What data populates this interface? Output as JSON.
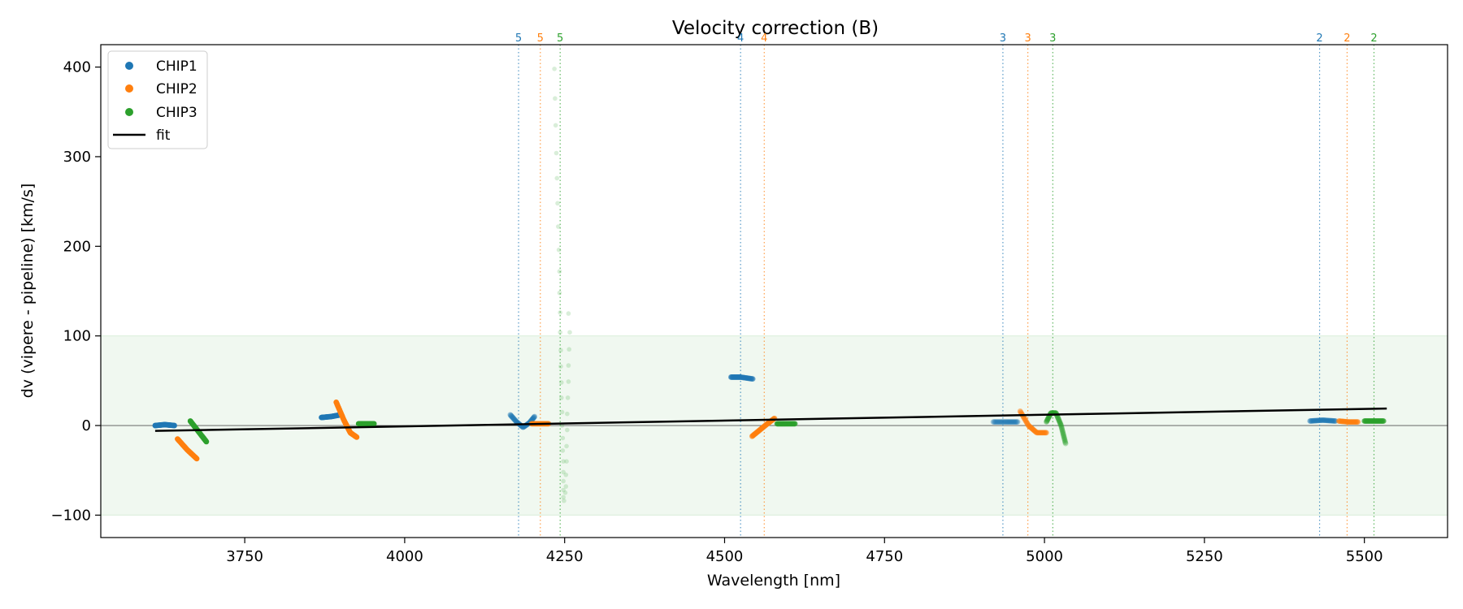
{
  "chart_data": {
    "type": "scatter",
    "title": "Velocity correction (B)",
    "xlabel": "Wavelength [nm]",
    "ylabel": "dv (vipere - pipeline) [km/s]",
    "xlim": [
      3525,
      5630
    ],
    "ylim": [
      -125,
      425
    ],
    "xticks": [
      3750,
      4000,
      4250,
      4500,
      4750,
      5000,
      5250,
      5500
    ],
    "yticks": [
      -100,
      0,
      100,
      200,
      300,
      400
    ],
    "grid": false,
    "legend_position": "top-left",
    "legend": [
      "CHIP1",
      "CHIP2",
      "CHIP3",
      "fit"
    ],
    "colors": {
      "CHIP1": "#1f77b4",
      "CHIP2": "#ff7f0e",
      "CHIP3": "#2ca02c",
      "fit": "#000000",
      "band": "#2ca02c"
    },
    "tolerance_band": [
      -100,
      100
    ],
    "fit": {
      "x": [
        3610,
        5535
      ],
      "y": [
        -6,
        19
      ]
    },
    "order_markers": [
      {
        "label": "5",
        "series": "CHIP1",
        "x": 4178
      },
      {
        "label": "5",
        "series": "CHIP2",
        "x": 4212
      },
      {
        "label": "5",
        "series": "CHIP3",
        "x": 4243
      },
      {
        "label": "4",
        "series": "CHIP1",
        "x": 4525
      },
      {
        "label": "4",
        "series": "CHIP2",
        "x": 4562
      },
      {
        "label": "3",
        "series": "CHIP1",
        "x": 4935
      },
      {
        "label": "3",
        "series": "CHIP2",
        "x": 4974
      },
      {
        "label": "3",
        "series": "CHIP3",
        "x": 5013
      },
      {
        "label": "2",
        "series": "CHIP1",
        "x": 5430
      },
      {
        "label": "2",
        "series": "CHIP2",
        "x": 5473
      },
      {
        "label": "2",
        "series": "CHIP3",
        "x": 5515
      }
    ],
    "series": [
      {
        "name": "CHIP1",
        "segments": [
          {
            "order": 6,
            "alpha": 1.0,
            "points": [
              [
                3610,
                0
              ],
              [
                3625,
                1
              ],
              [
                3640,
                0
              ]
            ]
          },
          {
            "order": 6,
            "alpha": 1.0,
            "points": [
              [
                3870,
                9
              ],
              [
                3885,
                10
              ],
              [
                3900,
                12
              ]
            ]
          },
          {
            "order": 5,
            "alpha": 0.35,
            "points": [
              [
                4165,
                12
              ],
              [
                4175,
                4
              ],
              [
                4185,
                -2
              ],
              [
                4195,
                3
              ],
              [
                4203,
                10
              ]
            ]
          },
          {
            "order": 4,
            "alpha": 0.6,
            "points": [
              [
                4510,
                54
              ],
              [
                4525,
                54
              ],
              [
                4544,
                52
              ]
            ]
          },
          {
            "order": 3,
            "alpha": 0.35,
            "points": [
              [
                4920,
                4
              ],
              [
                4940,
                4
              ],
              [
                4958,
                4
              ]
            ]
          },
          {
            "order": 2,
            "alpha": 0.45,
            "points": [
              [
                5415,
                5
              ],
              [
                5435,
                6
              ],
              [
                5455,
                5
              ]
            ]
          }
        ]
      },
      {
        "name": "CHIP2",
        "segments": [
          {
            "order": 6,
            "alpha": 1.0,
            "points": [
              [
                3645,
                -15
              ],
              [
                3660,
                -27
              ],
              [
                3675,
                -37
              ]
            ]
          },
          {
            "order": 6,
            "alpha": 1.0,
            "points": [
              [
                3893,
                26
              ],
              [
                3905,
                6
              ],
              [
                3915,
                -8
              ],
              [
                3925,
                -13
              ]
            ]
          },
          {
            "order": 5,
            "alpha": 0.6,
            "points": [
              [
                4198,
                2
              ],
              [
                4212,
                2
              ],
              [
                4225,
                2
              ]
            ]
          },
          {
            "order": 4,
            "alpha": 0.6,
            "points": [
              [
                4543,
                -12
              ],
              [
                4555,
                -5
              ],
              [
                4567,
                2
              ],
              [
                4578,
                8
              ]
            ]
          },
          {
            "order": 3,
            "alpha": 0.45,
            "points": [
              [
                4962,
                16
              ],
              [
                4975,
                0
              ],
              [
                4988,
                -8
              ],
              [
                5003,
                -8
              ]
            ]
          },
          {
            "order": 2,
            "alpha": 0.45,
            "points": [
              [
                5460,
                5
              ],
              [
                5475,
                4
              ],
              [
                5490,
                4
              ]
            ]
          }
        ]
      },
      {
        "name": "CHIP3",
        "segments": [
          {
            "order": 6,
            "alpha": 1.0,
            "points": [
              [
                3665,
                5
              ],
              [
                3678,
                -7
              ],
              [
                3690,
                -18
              ]
            ]
          },
          {
            "order": 6,
            "alpha": 1.0,
            "points": [
              [
                3928,
                2
              ],
              [
                3940,
                2
              ],
              [
                3952,
                2
              ]
            ]
          },
          {
            "order": 5,
            "alpha": 0.18,
            "points": [
              [
                4234,
                398
              ],
              [
                4235,
                365
              ],
              [
                4236,
                335
              ],
              [
                4237,
                304
              ],
              [
                4238,
                276
              ],
              [
                4239,
                248
              ],
              [
                4240,
                222
              ],
              [
                4241,
                196
              ],
              [
                4242,
                172
              ],
              [
                4242,
                148
              ],
              [
                4243,
                126
              ],
              [
                4243,
                104
              ],
              [
                4244,
                84
              ],
              [
                4244,
                66
              ],
              [
                4245,
                48
              ],
              [
                4245,
                31
              ],
              [
                4246,
                15
              ],
              [
                4246,
                0
              ],
              [
                4247,
                -14
              ],
              [
                4247,
                -28
              ],
              [
                4248,
                -40
              ],
              [
                4248,
                -52
              ],
              [
                4248,
                -62
              ],
              [
                4248,
                -72
              ],
              [
                4248,
                -80
              ],
              [
                4249,
                -84
              ],
              [
                4256,
                125
              ],
              [
                4258,
                104
              ],
              [
                4257,
                85
              ],
              [
                4256,
                67
              ],
              [
                4256,
                49
              ],
              [
                4255,
                31
              ],
              [
                4254,
                13
              ],
              [
                4254,
                -5
              ],
              [
                4253,
                -23
              ],
              [
                4253,
                -40
              ],
              [
                4252,
                -55
              ],
              [
                4252,
                -68
              ],
              [
                4251,
                -75
              ]
            ]
          },
          {
            "order": 4,
            "alpha": 0.7,
            "points": [
              [
                4582,
                2
              ],
              [
                4595,
                2
              ],
              [
                4610,
                2
              ]
            ]
          },
          {
            "order": 3,
            "alpha": 0.35,
            "points": [
              [
                5003,
                4
              ],
              [
                5010,
                14
              ],
              [
                5018,
                14
              ],
              [
                5026,
                0
              ],
              [
                5033,
                -20
              ]
            ]
          },
          {
            "order": 2,
            "alpha": 0.6,
            "points": [
              [
                5500,
                5
              ],
              [
                5515,
                5
              ],
              [
                5530,
                5
              ]
            ]
          }
        ]
      }
    ]
  }
}
